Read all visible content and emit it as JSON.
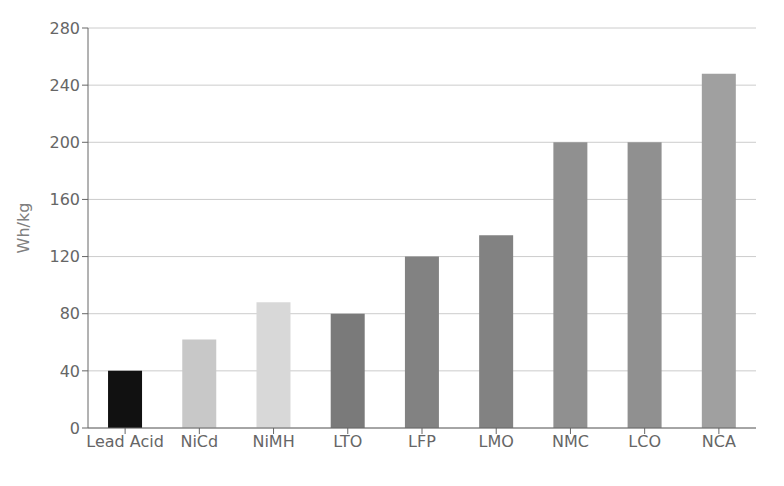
{
  "chart_data": {
    "type": "bar",
    "categories": [
      "Lead Acid",
      "NiCd",
      "NiMH",
      "LTO",
      "LFP",
      "LMO",
      "NMC",
      "LCO",
      "NCA"
    ],
    "values": [
      40,
      62,
      88,
      80,
      120,
      135,
      200,
      200,
      248
    ],
    "colors": [
      "#111111",
      "#c8c8c8",
      "#d8d8d8",
      "#7a7a7a",
      "#828282",
      "#828282",
      "#909090",
      "#909090",
      "#a0a0a0"
    ],
    "ylabel": "Wh/kg",
    "ylim": [
      0,
      280
    ],
    "yticks": [
      0,
      40,
      80,
      120,
      160,
      200,
      240,
      280
    ],
    "grid": true
  }
}
